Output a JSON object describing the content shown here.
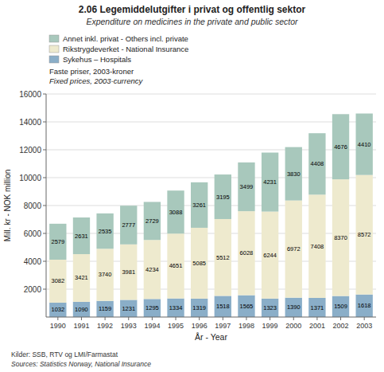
{
  "chart_data": {
    "type": "bar",
    "stacked": true,
    "data_labels": true,
    "grid": true,
    "legend": "upper left",
    "title": "2.06 Legemiddelutgifter i privat og offentlig sektor",
    "subtitle": "Expenditure on medicines in the private and public sector",
    "xlabel": "År - Year",
    "ylabel": "Mill. kr - NOK million",
    "categories": [
      "1990",
      "1991",
      "1992",
      "1993",
      "1994",
      "1995",
      "1996",
      "1997",
      "1998",
      "1999",
      "2000",
      "2001",
      "2002",
      "2003"
    ],
    "series": [
      {
        "name": "Sykehus – Hospitals",
        "color": "#8AAEC8",
        "values": [
          1032,
          1090,
          1159,
          1231,
          1295,
          1334,
          1319,
          1518,
          1565,
          1323,
          1390,
          1371,
          1509,
          1618
        ]
      },
      {
        "name": "Rikstrygdeverket - National Insurance",
        "color": "#EEEACE",
        "values": [
          3082,
          3421,
          3740,
          3981,
          4234,
          4651,
          5085,
          5512,
          6028,
          6244,
          6972,
          7408,
          8370,
          8572
        ]
      },
      {
        "name": "Annet inkl. privat - Others incl. private",
        "color": "#A8C8BC",
        "values": [
          2579,
          2631,
          2535,
          2777,
          2729,
          3088,
          3261,
          3195,
          3499,
          4231,
          3830,
          4408,
          4676,
          4410
        ]
      }
    ],
    "ylim": [
      0,
      16000
    ],
    "yticks": [
      2000,
      4000,
      6000,
      8000,
      10000,
      12000,
      14000,
      16000
    ],
    "annotations": [
      "Faste priser, 2003-kroner",
      "Fixed prices, 2003-currency",
      "Kilder: SSB, RTV og LMI/Farmastat",
      "Sources: Statistics Norway, National Insurance"
    ]
  }
}
